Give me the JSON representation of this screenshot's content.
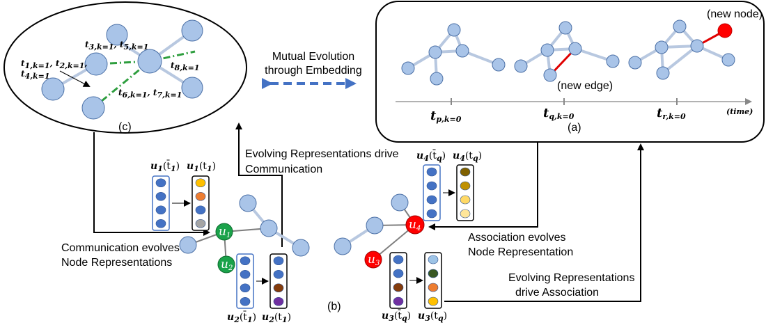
{
  "labels": {
    "panel_c": "(c)",
    "panel_a": "(a)",
    "panel_b": "(b)",
    "mutual_line1": "Mutual Evolution",
    "mutual_line2": "through Embedding",
    "new_node": "(new node)",
    "new_edge": "(new edge)",
    "time": "(time)",
    "evolving_comm_line1": "Evolving Representations drive",
    "evolving_comm_line2": "Communication",
    "comm_evolves_line1": "Communication evolves",
    "comm_evolves_line2": "Node Representations",
    "assoc_evolves_line1": "Association evolves",
    "assoc_evolves_line2": "Node Representation",
    "evolving_assoc_line1": "Evolving Representations",
    "evolving_assoc_line2": "drive Association"
  },
  "timeline": [
    {
      "t": "t",
      "sub": "p,k=0"
    },
    {
      "t": "t",
      "sub": "q,k=0"
    },
    {
      "t": "t",
      "sub": "r,k=0"
    }
  ],
  "comm_events": [
    {
      "text": "t",
      "sub": "1,k=1",
      "text2": ", t",
      "sub2": "2,k=1",
      "tail": ","
    },
    {
      "text": "t",
      "sub": "4,k=1"
    },
    {
      "text": "t",
      "sub": "3,k=1",
      "text2": ", t",
      "sub2": "5,k=1"
    },
    {
      "text": "t",
      "sub": "8,k=1"
    },
    {
      "text": "t",
      "sub": "6,k=1",
      "text2": ", t",
      "sub2": "7,k=1"
    }
  ],
  "nodes": {
    "u1": "u",
    "u1_sub": "1",
    "u2": "u",
    "u2_sub": "2",
    "u3": "u",
    "u3_sub": "3",
    "u4": "u",
    "u4_sub": "4"
  },
  "vectors": {
    "u1_prev": {
      "name": "u",
      "sub": "1",
      "arg": "(t̄",
      "argsub": "1",
      "close": ")"
    },
    "u1_curr": {
      "name": "u",
      "sub": "1",
      "arg": "(t",
      "argsub": "1",
      "close": ")"
    },
    "u2_prev": {
      "name": "u",
      "sub": "2",
      "arg": "(t̄",
      "argsub": "1",
      "close": ")"
    },
    "u2_curr": {
      "name": "u",
      "sub": "2",
      "arg": "(t",
      "argsub": "1",
      "close": ")"
    },
    "u4_prev": {
      "name": "u",
      "sub": "4",
      "arg": "(t̄",
      "argsub": "q",
      "close": ")"
    },
    "u4_curr": {
      "name": "u",
      "sub": "4",
      "arg": "(t",
      "argsub": "q",
      "close": ")"
    },
    "u3_prev": {
      "name": "u",
      "sub": "3",
      "arg": "(t̄",
      "argsub": "q",
      "close": ")"
    },
    "u3_curr": {
      "name": "u",
      "sub": "3",
      "arg": "(t",
      "argsub": "q",
      "close": ")"
    }
  },
  "colors": {
    "node_fill": "#a9c4e8",
    "node_stroke": "#4a6fa5",
    "edge": "#b8c8e0",
    "edge_dark": "#7f7f7f",
    "green_node": "#1aa24a",
    "red_node": "#ff0000",
    "dashdot": "#2e9e3e",
    "mutual_arrow": "#4472c4",
    "vec_blue": "#4472c4",
    "u1_curr_cells": [
      "#ffc000",
      "#ed7d31",
      "#4472c4",
      "#a5a5a5"
    ],
    "u2_curr_cells": [
      "#4472c4",
      "#4472c4",
      "#843c0c",
      "#7030a0"
    ],
    "u4_curr_cells": [
      "#7f6000",
      "#bf9000",
      "#ffd966",
      "#ffe699"
    ],
    "u3_prev_cells": [
      "#4472c4",
      "#4472c4",
      "#843c0c",
      "#7030a0"
    ],
    "u3_curr_cells": [
      "#9dc3e6",
      "#385723",
      "#ed7d31",
      "#ffc000"
    ]
  }
}
